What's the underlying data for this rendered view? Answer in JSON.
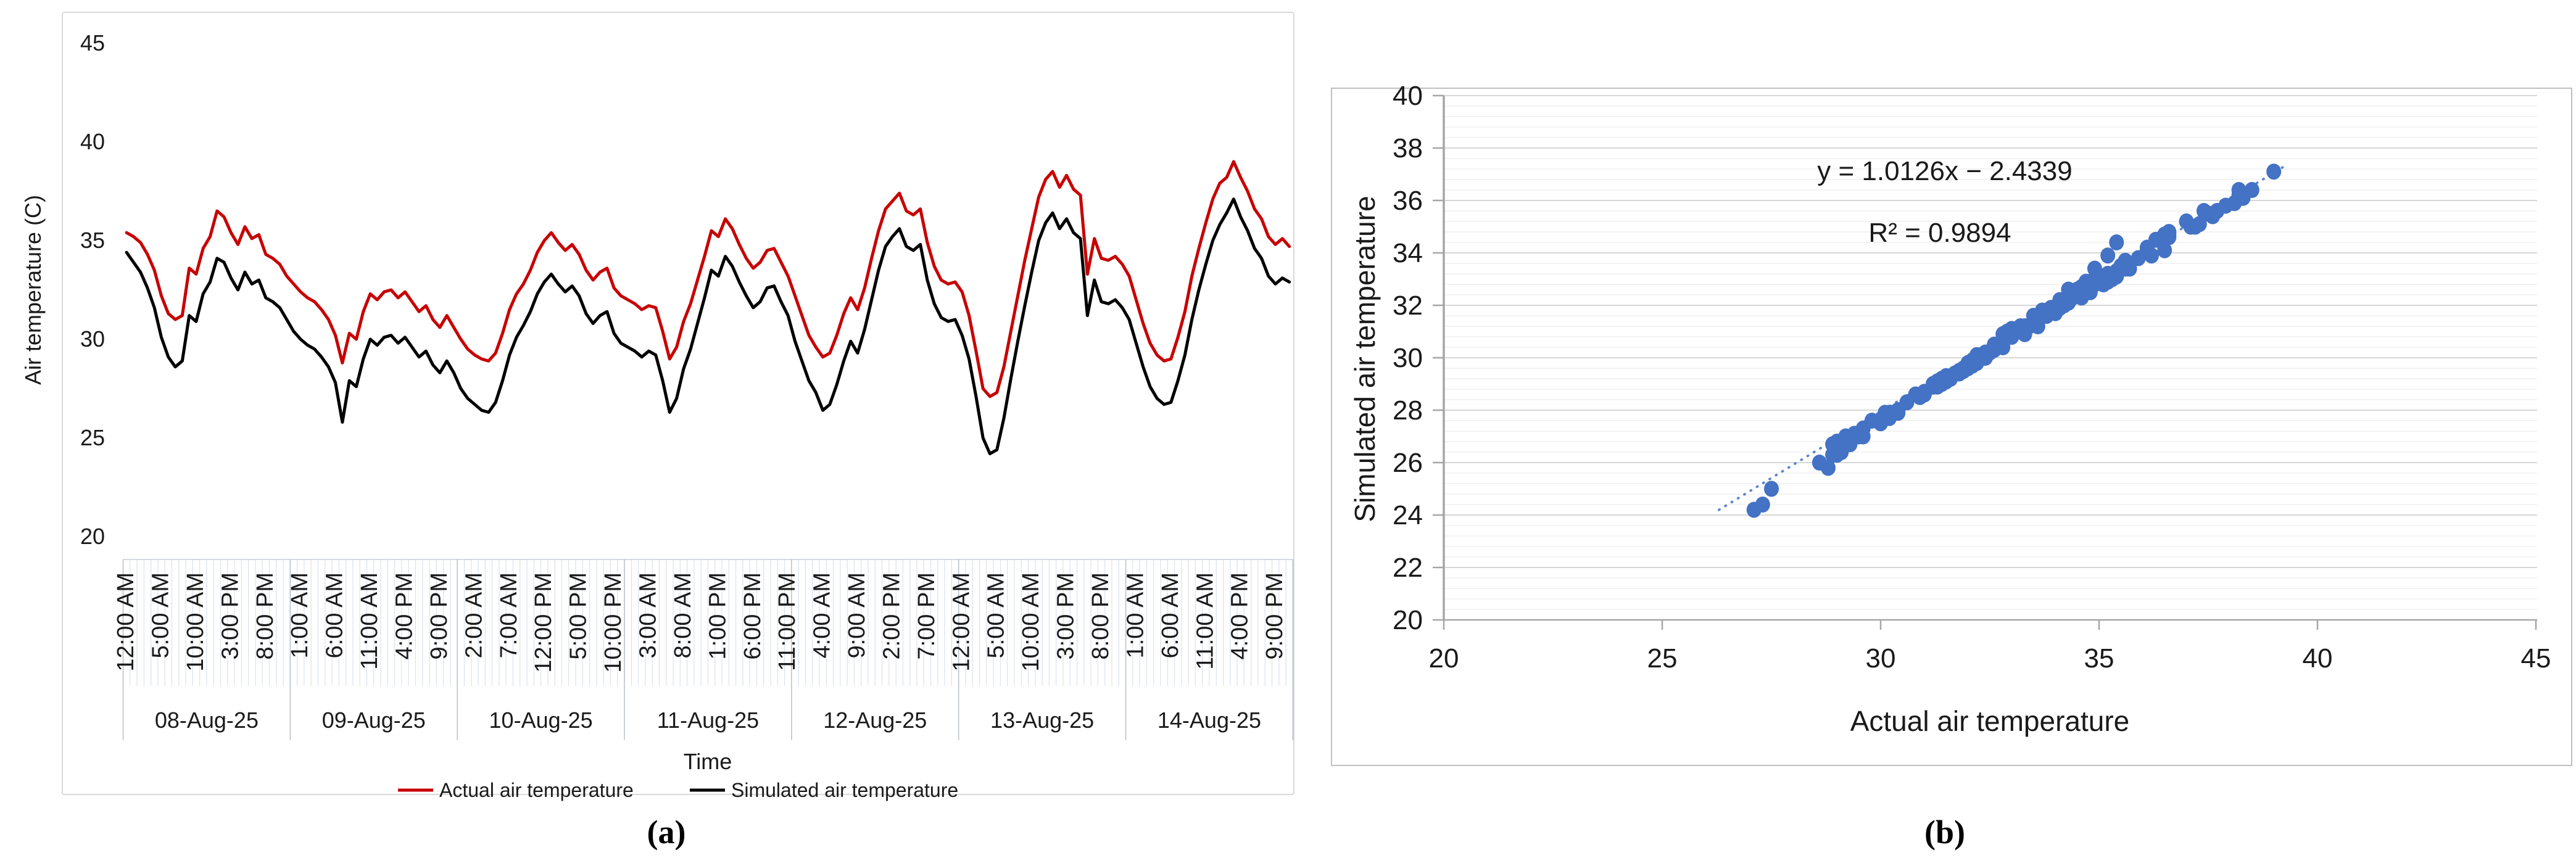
{
  "figure": {
    "caption_a": "(a)",
    "caption_b": "(b)"
  },
  "colors": {
    "actual_line": "#C80000",
    "simulated_line": "#000000",
    "scatter_marker": "#4472C4",
    "trendline": "#4472C4",
    "grid_major": "#c9c9c9",
    "grid_minor": "#e7e7e7",
    "axis_line": "#a6a6a6",
    "stripe": "#dbe1ec",
    "day_separator": "#b9bfc9",
    "panel_border_a": "#d9d9d9",
    "panel_border_b": "#bfbfbf"
  },
  "chart_data": [
    {
      "type": "line",
      "title": "",
      "xlabel": "Time",
      "ylabel": "Air temperature (C)",
      "ylim": [
        20,
        45
      ],
      "yticks": [
        20,
        25,
        30,
        35,
        40,
        45
      ],
      "grid": "off",
      "legend_position": "bottom",
      "x_tick_interval_hours": 5,
      "x_time_labels": [
        "12:00 AM",
        "5:00 AM",
        "10:00 AM",
        "3:00 PM",
        "8:00 PM",
        "1:00 AM",
        "6:00 AM",
        "11:00 AM",
        "4:00 PM",
        "9:00 PM",
        "2:00 AM",
        "7:00 AM",
        "12:00 PM",
        "5:00 PM",
        "10:00 PM",
        "3:00 AM",
        "8:00 AM",
        "1:00 PM",
        "6:00 PM",
        "11:00 PM",
        "4:00 AM",
        "9:00 AM",
        "2:00 PM",
        "7:00 PM",
        "12:00 AM",
        "5:00 AM",
        "10:00 AM",
        "3:00 PM",
        "8:00 PM",
        "1:00 AM",
        "6:00 AM",
        "11:00 AM",
        "4:00 PM",
        "9:00 PM"
      ],
      "day_labels": [
        "08-Aug-25",
        "09-Aug-25",
        "10-Aug-25",
        "11-Aug-25",
        "12-Aug-25",
        "13-Aug-25",
        "14-Aug-25"
      ],
      "hours_per_day": 24,
      "series": [
        {
          "name": "Actual air temperature",
          "color": "#C80000",
          "values": [
            35.4,
            35.2,
            34.9,
            34.3,
            33.5,
            32.2,
            31.3,
            31.0,
            31.2,
            33.6,
            33.3,
            34.6,
            35.2,
            36.5,
            36.2,
            35.4,
            34.8,
            35.7,
            35.1,
            35.3,
            34.3,
            34.1,
            33.8,
            33.2,
            32.8,
            32.4,
            32.1,
            31.9,
            31.5,
            31.0,
            30.2,
            28.8,
            30.3,
            30.0,
            31.4,
            32.3,
            32.0,
            32.4,
            32.5,
            32.1,
            32.4,
            31.9,
            31.4,
            31.7,
            31.0,
            30.6,
            31.2,
            30.6,
            30.0,
            29.5,
            29.2,
            29.0,
            28.9,
            29.3,
            30.3,
            31.5,
            32.3,
            32.8,
            33.5,
            34.4,
            35.0,
            35.4,
            34.9,
            34.5,
            34.8,
            34.3,
            33.5,
            33.0,
            33.4,
            33.6,
            32.6,
            32.2,
            32.0,
            31.8,
            31.5,
            31.7,
            31.6,
            30.4,
            29.0,
            29.6,
            30.9,
            31.8,
            33.0,
            34.2,
            35.5,
            35.2,
            36.1,
            35.6,
            34.8,
            34.1,
            33.6,
            33.9,
            34.5,
            34.6,
            33.9,
            33.2,
            32.2,
            31.2,
            30.2,
            29.6,
            29.1,
            29.3,
            30.2,
            31.3,
            32.1,
            31.5,
            32.6,
            34.1,
            35.5,
            36.6,
            37.0,
            37.4,
            36.5,
            36.3,
            36.6,
            34.9,
            33.7,
            33.0,
            32.8,
            32.9,
            32.4,
            31.2,
            29.4,
            27.5,
            27.1,
            27.3,
            28.6,
            30.4,
            32.2,
            34.0,
            35.6,
            37.2,
            38.1,
            38.5,
            37.7,
            38.3,
            37.6,
            37.3,
            33.3,
            35.1,
            34.1,
            34.0,
            34.2,
            33.8,
            33.2,
            32.0,
            30.8,
            29.8,
            29.2,
            28.9,
            29.0,
            30.1,
            31.4,
            33.2,
            34.6,
            35.9,
            37.1,
            37.9,
            38.2,
            39.0,
            38.2,
            37.5,
            36.6,
            36.1,
            35.2,
            34.8,
            35.1,
            34.7
          ]
        },
        {
          "name": "Simulated air temperature",
          "color": "#000000",
          "values": [
            34.4,
            33.9,
            33.4,
            32.6,
            31.6,
            30.1,
            29.1,
            28.6,
            28.9,
            31.2,
            30.9,
            32.3,
            32.9,
            34.1,
            33.9,
            33.1,
            32.5,
            33.4,
            32.8,
            33.0,
            32.1,
            31.9,
            31.6,
            31.0,
            30.4,
            30.0,
            29.7,
            29.5,
            29.1,
            28.6,
            27.8,
            25.8,
            27.9,
            27.6,
            29.0,
            30.0,
            29.7,
            30.1,
            30.2,
            29.8,
            30.1,
            29.6,
            29.1,
            29.4,
            28.7,
            28.3,
            28.9,
            28.3,
            27.5,
            27.0,
            26.7,
            26.4,
            26.3,
            26.8,
            27.9,
            29.2,
            30.1,
            30.7,
            31.4,
            32.3,
            32.9,
            33.3,
            32.8,
            32.4,
            32.7,
            32.2,
            31.3,
            30.8,
            31.2,
            31.4,
            30.3,
            29.8,
            29.6,
            29.4,
            29.1,
            29.4,
            29.2,
            27.9,
            26.3,
            27.0,
            28.5,
            29.5,
            30.8,
            32.1,
            33.5,
            33.2,
            34.2,
            33.7,
            32.9,
            32.2,
            31.6,
            31.9,
            32.6,
            32.7,
            31.9,
            31.2,
            29.9,
            28.9,
            27.9,
            27.3,
            26.4,
            26.7,
            27.7,
            28.9,
            29.9,
            29.3,
            30.5,
            32.0,
            33.5,
            34.7,
            35.2,
            35.6,
            34.7,
            34.5,
            34.8,
            33.0,
            31.8,
            31.1,
            30.9,
            31.0,
            30.2,
            29.0,
            27.1,
            25.0,
            24.2,
            24.4,
            26.0,
            28.0,
            29.9,
            31.7,
            33.4,
            35.0,
            35.9,
            36.4,
            35.6,
            36.1,
            35.4,
            35.1,
            31.2,
            33.0,
            31.9,
            31.8,
            32.0,
            31.6,
            31.0,
            29.8,
            28.6,
            27.6,
            27.0,
            26.7,
            26.8,
            27.9,
            29.2,
            31.0,
            32.5,
            33.8,
            35.0,
            35.8,
            36.4,
            37.1,
            36.2,
            35.5,
            34.6,
            34.1,
            33.2,
            32.8,
            33.1,
            32.9
          ]
        }
      ]
    },
    {
      "type": "scatter",
      "xlabel": "Actual air temperature",
      "ylabel": "Simulated air temperature",
      "xlim": [
        20,
        45
      ],
      "ylim": [
        20,
        40
      ],
      "xticks": [
        20,
        25,
        30,
        35,
        40,
        45
      ],
      "yticks": [
        20,
        22,
        24,
        26,
        28,
        30,
        32,
        34,
        36,
        38,
        40
      ],
      "grid": {
        "major_every": 2,
        "minor_every": 0.4,
        "orientation": "horizontal"
      },
      "annotation": {
        "line1": "y = 1.0126x − 2.4339",
        "line2": "R² = 0.9894"
      },
      "trendline": {
        "slope": 1.0126,
        "intercept": -2.4339,
        "style": "dotted",
        "color": "#4472C4",
        "x_range": [
          26.3,
          39.3
        ]
      },
      "marker_color": "#4472C4",
      "points_source": "hourly pairs (actual, simulated) zipped from the two series of the line chart"
    }
  ]
}
